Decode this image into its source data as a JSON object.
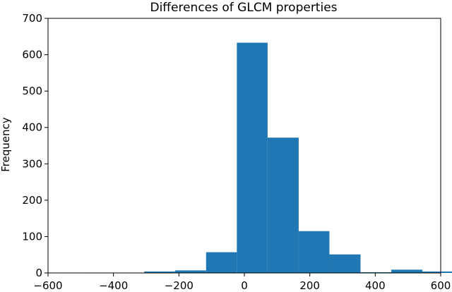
{
  "chart_data": {
    "type": "bar",
    "title": "Differences of GLCM properties",
    "xlabel": "",
    "ylabel": "Frequency",
    "xlim": [
      -600,
      600
    ],
    "ylim": [
      0,
      700
    ],
    "xticks": [
      -600,
      -400,
      -200,
      0,
      200,
      400,
      600
    ],
    "yticks": [
      0,
      100,
      200,
      300,
      400,
      500,
      600,
      700
    ],
    "grid": false,
    "bar_color": "#1f77b4",
    "bins": [
      {
        "x0": -496,
        "x1": -401,
        "value": 1
      },
      {
        "x0": -401,
        "x1": -306,
        "value": 1
      },
      {
        "x0": -306,
        "x1": -212,
        "value": 4
      },
      {
        "x0": -212,
        "x1": -117,
        "value": 7
      },
      {
        "x0": -117,
        "x1": -23,
        "value": 57
      },
      {
        "x0": -23,
        "x1": 71,
        "value": 633
      },
      {
        "x0": 71,
        "x1": 166,
        "value": 372
      },
      {
        "x0": 166,
        "x1": 260,
        "value": 115
      },
      {
        "x0": 260,
        "x1": 355,
        "value": 51
      },
      {
        "x0": 355,
        "x1": 449,
        "value": 2
      },
      {
        "x0": 449,
        "x1": 544,
        "value": 9
      },
      {
        "x0": 544,
        "x1": 638,
        "value": 4
      }
    ]
  }
}
